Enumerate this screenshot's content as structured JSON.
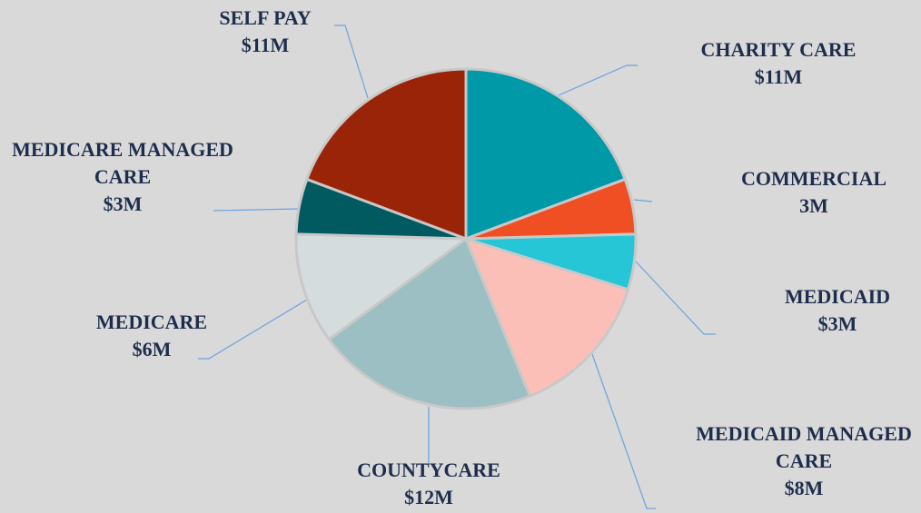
{
  "chart_data": {
    "type": "pie",
    "categories": [
      "CHARITY CARE",
      "COMMERCIAL",
      "MEDICAID",
      "MEDICAID MANAGED CARE",
      "COUNTYCARE",
      "MEDICARE",
      "MEDICARE MANAGED CARE",
      "SELF PAY"
    ],
    "values": [
      11,
      3,
      3,
      8,
      12,
      6,
      3,
      11
    ],
    "value_labels": [
      "$11M",
      "3M",
      "$3M",
      "$8M",
      "$12M",
      "$6M",
      "$3M",
      "$11M"
    ],
    "colors": [
      "#0099a8",
      "#f04e23",
      "#26c6d6",
      "#fcbfb8",
      "#9bbfc2",
      "#d5dcde",
      "#005a60",
      "#9a2408"
    ]
  }
}
